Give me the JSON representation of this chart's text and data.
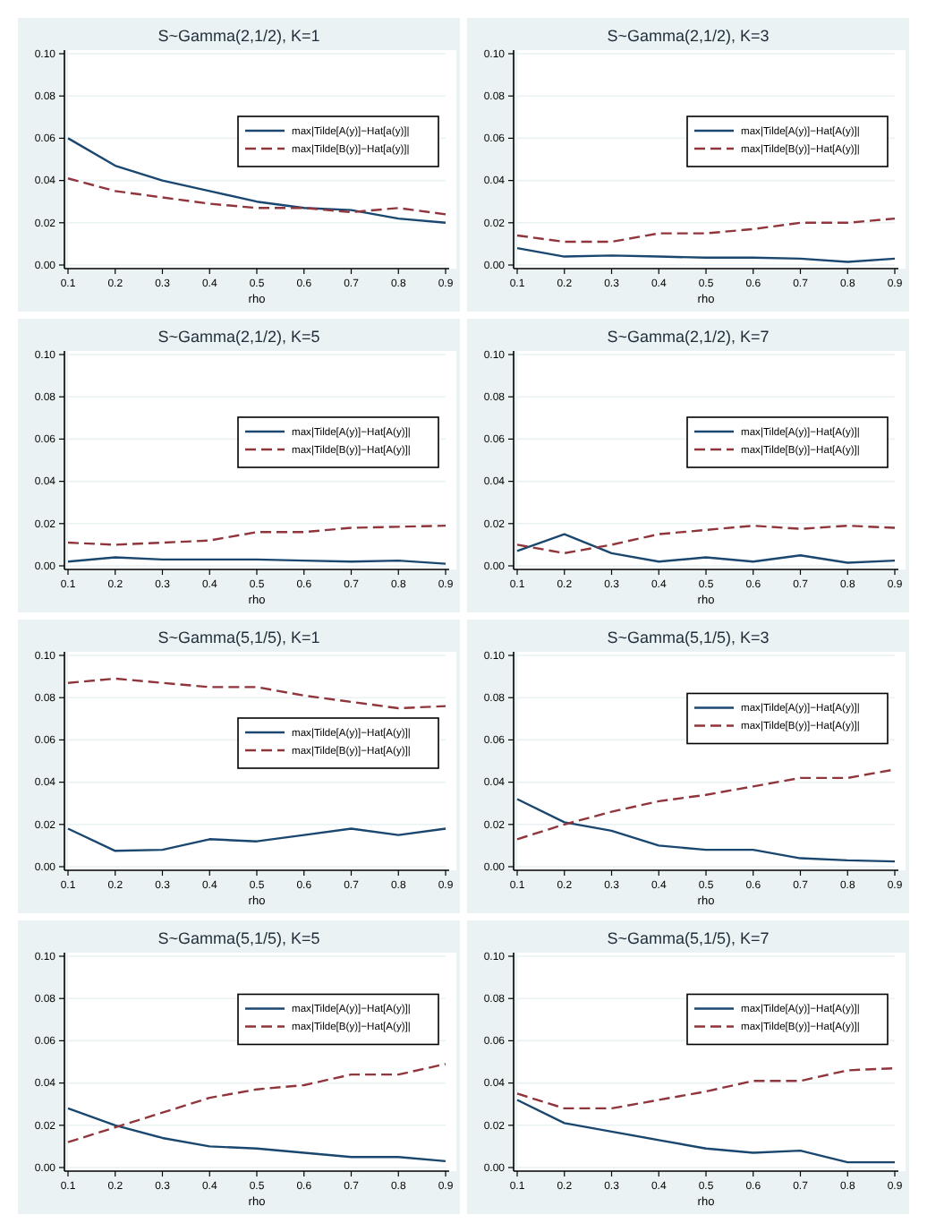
{
  "chart_data": [
    {
      "type": "line",
      "title": "S~Gamma(2,1/2), K=1",
      "xlabel": "rho",
      "x": [
        0.1,
        0.2,
        0.3,
        0.4,
        0.5,
        0.6,
        0.7,
        0.8,
        0.9
      ],
      "xlim": [
        0.1,
        0.9
      ],
      "xticks": [
        0.1,
        0.2,
        0.3,
        0.4,
        0.5,
        0.6,
        0.7,
        0.8,
        0.9
      ],
      "ylim": [
        0,
        0.1
      ],
      "yticks": [
        {
          "value": 0,
          "label": "0.00"
        },
        {
          "value": 0.02,
          "label": "0.02"
        },
        {
          "value": 0.04,
          "label": "0.04"
        },
        {
          "value": 0.06,
          "label": "0.06"
        },
        {
          "value": 0.08,
          "label": "0.08"
        },
        {
          "value": 0.1,
          "label": "0.10"
        }
      ],
      "grid": "y",
      "legend": "right",
      "series": [
        {
          "name": "max|Tilde[A(y)]−Hat[a(y)]|",
          "color": "#1a476f",
          "line_style": "solid",
          "values": [
            0.06,
            0.047,
            0.04,
            0.035,
            0.03,
            0.027,
            0.026,
            0.022,
            0.02
          ]
        },
        {
          "name": "max|Tilde[B(y)]−Hat[a(y)]|",
          "color": "#90353b",
          "line_style": "dashed",
          "values": [
            0.041,
            0.035,
            0.032,
            0.029,
            0.027,
            0.027,
            0.025,
            0.027,
            0.024
          ]
        }
      ]
    },
    {
      "type": "line",
      "title": "S~Gamma(2,1/2), K=3",
      "xlabel": "rho",
      "x": [
        0.1,
        0.2,
        0.3,
        0.4,
        0.5,
        0.6,
        0.7,
        0.8,
        0.9
      ],
      "xlim": [
        0.1,
        0.9
      ],
      "xticks": [
        0.1,
        0.2,
        0.3,
        0.4,
        0.5,
        0.6,
        0.7,
        0.8,
        0.9
      ],
      "ylim": [
        0,
        0.1
      ],
      "yticks": [
        {
          "value": 0,
          "label": "0.00"
        },
        {
          "value": 0.02,
          "label": "0.02"
        },
        {
          "value": 0.04,
          "label": "0.04"
        },
        {
          "value": 0.06,
          "label": "0.06"
        },
        {
          "value": 0.08,
          "label": "0.08"
        },
        {
          "value": 0.1,
          "label": "0.10"
        }
      ],
      "grid": "y",
      "legend": "right",
      "series": [
        {
          "name": "max|Tilde[A(y)]−Hat[A(y)]|",
          "color": "#1a476f",
          "line_style": "solid",
          "values": [
            0.008,
            0.004,
            0.0045,
            0.004,
            0.0035,
            0.0035,
            0.003,
            0.0015,
            0.003
          ]
        },
        {
          "name": "max|Tilde[B(y)]−Hat[A(y)]|",
          "color": "#90353b",
          "line_style": "dashed",
          "values": [
            0.014,
            0.011,
            0.011,
            0.015,
            0.015,
            0.017,
            0.02,
            0.02,
            0.022
          ]
        }
      ]
    },
    {
      "type": "line",
      "title": "S~Gamma(2,1/2), K=5",
      "xlabel": "rho",
      "x": [
        0.1,
        0.2,
        0.3,
        0.4,
        0.5,
        0.6,
        0.7,
        0.8,
        0.9
      ],
      "xlim": [
        0.1,
        0.9
      ],
      "xticks": [
        0.1,
        0.2,
        0.3,
        0.4,
        0.5,
        0.6,
        0.7,
        0.8,
        0.9
      ],
      "ylim": [
        0,
        0.1
      ],
      "yticks": [
        {
          "value": 0,
          "label": "0.00"
        },
        {
          "value": 0.02,
          "label": "0.02"
        },
        {
          "value": 0.04,
          "label": "0.04"
        },
        {
          "value": 0.06,
          "label": "0.06"
        },
        {
          "value": 0.08,
          "label": "0.08"
        },
        {
          "value": 0.1,
          "label": "0.10"
        }
      ],
      "grid": "y",
      "legend": "right",
      "series": [
        {
          "name": "max|Tilde[A(y)]−Hat[A(y)]|",
          "color": "#1a476f",
          "line_style": "solid",
          "values": [
            0.002,
            0.004,
            0.003,
            0.003,
            0.003,
            0.0025,
            0.002,
            0.0025,
            0.001
          ]
        },
        {
          "name": "max|Tilde[B(y)]−Hat[A(y)]|",
          "color": "#90353b",
          "line_style": "dashed",
          "values": [
            0.011,
            0.01,
            0.011,
            0.012,
            0.016,
            0.016,
            0.018,
            0.0185,
            0.019
          ]
        }
      ]
    },
    {
      "type": "line",
      "title": "S~Gamma(2,1/2), K=7",
      "xlabel": "rho",
      "x": [
        0.1,
        0.2,
        0.3,
        0.4,
        0.5,
        0.6,
        0.7,
        0.8,
        0.9
      ],
      "xlim": [
        0.1,
        0.9
      ],
      "xticks": [
        0.1,
        0.2,
        0.3,
        0.4,
        0.5,
        0.6,
        0.7,
        0.8,
        0.9
      ],
      "ylim": [
        0,
        0.1
      ],
      "yticks": [
        {
          "value": 0,
          "label": "0.00"
        },
        {
          "value": 0.02,
          "label": "0.02"
        },
        {
          "value": 0.04,
          "label": "0.04"
        },
        {
          "value": 0.06,
          "label": "0.06"
        },
        {
          "value": 0.08,
          "label": "0.08"
        },
        {
          "value": 0.1,
          "label": "0.10"
        }
      ],
      "grid": "y",
      "legend": "right",
      "series": [
        {
          "name": "max|Tilde[A(y)]−Hat[A(y)]|",
          "color": "#1a476f",
          "line_style": "solid",
          "values": [
            0.007,
            0.015,
            0.006,
            0.002,
            0.004,
            0.002,
            0.005,
            0.0015,
            0.0025
          ]
        },
        {
          "name": "max|Tilde[B(y)]−Hat[A(y)]|",
          "color": "#90353b",
          "line_style": "dashed",
          "values": [
            0.01,
            0.006,
            0.01,
            0.015,
            0.017,
            0.019,
            0.0175,
            0.019,
            0.018
          ]
        }
      ]
    },
    {
      "type": "line",
      "title": "S~Gamma(5,1/5), K=1",
      "xlabel": "rho",
      "x": [
        0.1,
        0.2,
        0.3,
        0.4,
        0.5,
        0.6,
        0.7,
        0.8,
        0.9
      ],
      "xlim": [
        0.1,
        0.9
      ],
      "xticks": [
        0.1,
        0.2,
        0.3,
        0.4,
        0.5,
        0.6,
        0.7,
        0.8,
        0.9
      ],
      "ylim": [
        0,
        0.1
      ],
      "yticks": [
        {
          "value": 0,
          "label": "0.00"
        },
        {
          "value": 0.02,
          "label": "0.02"
        },
        {
          "value": 0.04,
          "label": "0.04"
        },
        {
          "value": 0.06,
          "label": "0.06"
        },
        {
          "value": 0.08,
          "label": "0.08"
        },
        {
          "value": 0.1,
          "label": "0.10"
        }
      ],
      "grid": "y",
      "legend": "right",
      "series": [
        {
          "name": "max|Tilde[A(y)]−Hat[A(y)]|",
          "color": "#1a476f",
          "line_style": "solid",
          "values": [
            0.018,
            0.0075,
            0.008,
            0.013,
            0.012,
            0.015,
            0.018,
            0.015,
            0.018
          ]
        },
        {
          "name": "max|Tilde[B(y)]−Hat[A(y)]|",
          "color": "#90353b",
          "line_style": "dashed",
          "values": [
            0.087,
            0.089,
            0.087,
            0.085,
            0.085,
            0.081,
            0.078,
            0.075,
            0.076
          ]
        }
      ]
    },
    {
      "type": "line",
      "title": "S~Gamma(5,1/5), K=3",
      "xlabel": "rho",
      "x": [
        0.1,
        0.2,
        0.3,
        0.4,
        0.5,
        0.6,
        0.7,
        0.8,
        0.9
      ],
      "xlim": [
        0.1,
        0.9
      ],
      "xticks": [
        0.1,
        0.2,
        0.3,
        0.4,
        0.5,
        0.6,
        0.7,
        0.8,
        0.9
      ],
      "ylim": [
        0,
        0.1
      ],
      "yticks": [
        {
          "value": 0,
          "label": "0.00"
        },
        {
          "value": 0.02,
          "label": "0.02"
        },
        {
          "value": 0.04,
          "label": "0.04"
        },
        {
          "value": 0.06,
          "label": "0.06"
        },
        {
          "value": 0.08,
          "label": "0.08"
        },
        {
          "value": 0.1,
          "label": "0.10"
        }
      ],
      "grid": "y",
      "legend": "top right",
      "series": [
        {
          "name": "max|Tilde[A(y)]−Hat[A(y)]|",
          "color": "#1a476f",
          "line_style": "solid",
          "values": [
            0.032,
            0.021,
            0.017,
            0.01,
            0.008,
            0.008,
            0.004,
            0.003,
            0.0025
          ]
        },
        {
          "name": "max|Tilde[B(y)]−Hat[A(y)]|",
          "color": "#90353b",
          "line_style": "dashed",
          "values": [
            0.013,
            0.02,
            0.026,
            0.031,
            0.034,
            0.038,
            0.042,
            0.042,
            0.046
          ]
        }
      ]
    },
    {
      "type": "line",
      "title": "S~Gamma(5,1/5), K=5",
      "xlabel": "rho",
      "x": [
        0.1,
        0.2,
        0.3,
        0.4,
        0.5,
        0.6,
        0.7,
        0.8,
        0.9
      ],
      "xlim": [
        0.1,
        0.9
      ],
      "xticks": [
        0.1,
        0.2,
        0.3,
        0.4,
        0.5,
        0.6,
        0.7,
        0.8,
        0.9
      ],
      "ylim": [
        0,
        0.1
      ],
      "yticks": [
        {
          "value": 0,
          "label": "0.00"
        },
        {
          "value": 0.02,
          "label": "0.02"
        },
        {
          "value": 0.04,
          "label": "0.04"
        },
        {
          "value": 0.06,
          "label": "0.06"
        },
        {
          "value": 0.08,
          "label": "0.08"
        },
        {
          "value": 0.1,
          "label": "0.10"
        }
      ],
      "grid": "y",
      "legend": "top right",
      "series": [
        {
          "name": "max|Tilde[A(y)]−Hat[A(y)]|",
          "color": "#1a476f",
          "line_style": "solid",
          "values": [
            0.028,
            0.02,
            0.014,
            0.01,
            0.009,
            0.007,
            0.005,
            0.005,
            0.003
          ]
        },
        {
          "name": "max|Tilde[B(y)]−Hat[A(y)]|",
          "color": "#90353b",
          "line_style": "dashed",
          "values": [
            0.012,
            0.019,
            0.026,
            0.033,
            0.037,
            0.039,
            0.044,
            0.044,
            0.049
          ]
        }
      ]
    },
    {
      "type": "line",
      "title": "S~Gamma(5,1/5), K=7",
      "xlabel": "rho",
      "x": [
        0.1,
        0.2,
        0.3,
        0.4,
        0.5,
        0.6,
        0.7,
        0.8,
        0.9
      ],
      "xlim": [
        0.1,
        0.9
      ],
      "xticks": [
        0.1,
        0.2,
        0.3,
        0.4,
        0.5,
        0.6,
        0.7,
        0.8,
        0.9
      ],
      "ylim": [
        0,
        0.1
      ],
      "yticks": [
        {
          "value": 0,
          "label": "0.00"
        },
        {
          "value": 0.02,
          "label": "0.02"
        },
        {
          "value": 0.04,
          "label": "0.04"
        },
        {
          "value": 0.06,
          "label": "0.06"
        },
        {
          "value": 0.08,
          "label": "0.08"
        },
        {
          "value": 0.1,
          "label": "0.10"
        }
      ],
      "grid": "y",
      "legend": "top right",
      "series": [
        {
          "name": "max|Tilde[A(y)]−Hat[A(y)]|",
          "color": "#1a476f",
          "line_style": "solid",
          "values": [
            0.032,
            0.021,
            0.017,
            0.013,
            0.009,
            0.007,
            0.008,
            0.0025,
            0.0025
          ]
        },
        {
          "name": "max|Tilde[B(y)]−Hat[A(y)]|",
          "color": "#90353b",
          "line_style": "dashed",
          "values": [
            0.035,
            0.028,
            0.028,
            0.032,
            0.036,
            0.041,
            0.041,
            0.046,
            0.047
          ]
        }
      ]
    }
  ]
}
